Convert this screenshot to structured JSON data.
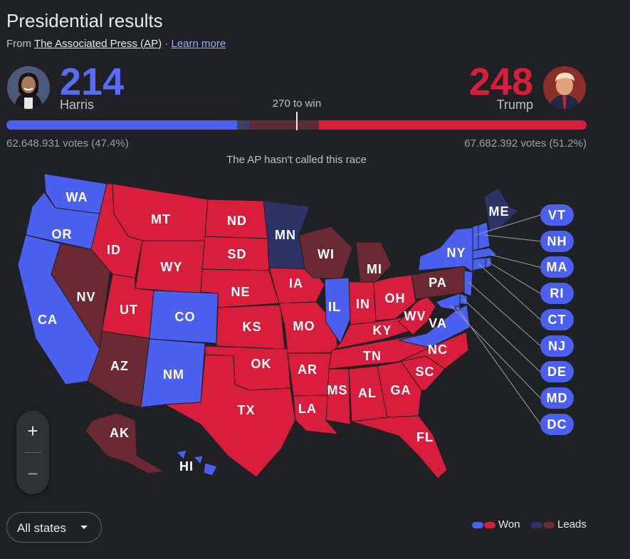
{
  "header": {
    "title": "Presidential results",
    "source_prefix": "From",
    "source_name": "The Associated Press (AP)",
    "separator": "·",
    "learn_more": "Learn more"
  },
  "candidates": {
    "harris": {
      "name": "Harris",
      "electoral_votes": "214",
      "votes_text": "62.648.931 votes (47.4%)",
      "color": "#5a6cf5"
    },
    "trump": {
      "name": "Trump",
      "electoral_votes": "248",
      "votes_text": "67.682.392 votes (51.2%)",
      "color": "#d81e3c"
    }
  },
  "progress": {
    "to_win_label": "270 to win",
    "total_electoral": 538,
    "win_threshold": 270,
    "dem_won": 214,
    "dem_leads": 12,
    "rep_leads": 64,
    "rep_won": 248
  },
  "status_text": "The AP hasn't called this race",
  "colors": {
    "dem_won": "#4c60f0",
    "dem_leads": "#2e3367",
    "rep_won": "#d81e3c",
    "rep_leads": "#6b2a33",
    "bar_dem_leads": "#3a4266",
    "bar_rep_leads": "#5a2d35"
  },
  "states": {
    "WA": {
      "label": "WA",
      "status": "dem_won"
    },
    "OR": {
      "label": "OR",
      "status": "dem_won"
    },
    "CA": {
      "label": "CA",
      "status": "dem_won"
    },
    "NV": {
      "label": "NV",
      "status": "rep_leads"
    },
    "ID": {
      "label": "ID",
      "status": "rep_won"
    },
    "MT": {
      "label": "MT",
      "status": "rep_won"
    },
    "WY": {
      "label": "WY",
      "status": "rep_won"
    },
    "UT": {
      "label": "UT",
      "status": "rep_won"
    },
    "AZ": {
      "label": "AZ",
      "status": "rep_leads"
    },
    "CO": {
      "label": "CO",
      "status": "dem_won"
    },
    "NM": {
      "label": "NM",
      "status": "dem_won"
    },
    "ND": {
      "label": "ND",
      "status": "rep_won"
    },
    "SD": {
      "label": "SD",
      "status": "rep_won"
    },
    "NE": {
      "label": "NE",
      "status": "rep_won"
    },
    "KS": {
      "label": "KS",
      "status": "rep_won"
    },
    "OK": {
      "label": "OK",
      "status": "rep_won"
    },
    "TX": {
      "label": "TX",
      "status": "rep_won"
    },
    "MN": {
      "label": "MN",
      "status": "dem_leads"
    },
    "IA": {
      "label": "IA",
      "status": "rep_won"
    },
    "MO": {
      "label": "MO",
      "status": "rep_won"
    },
    "AR": {
      "label": "AR",
      "status": "rep_won"
    },
    "LA": {
      "label": "LA",
      "status": "rep_won"
    },
    "WI": {
      "label": "WI",
      "status": "rep_leads"
    },
    "IL": {
      "label": "IL",
      "status": "dem_won"
    },
    "MI": {
      "label": "MI",
      "status": "rep_leads"
    },
    "IN": {
      "label": "IN",
      "status": "rep_won"
    },
    "OH": {
      "label": "OH",
      "status": "rep_won"
    },
    "KY": {
      "label": "KY",
      "status": "rep_won"
    },
    "TN": {
      "label": "TN",
      "status": "rep_won"
    },
    "MS": {
      "label": "MS",
      "status": "rep_won"
    },
    "AL": {
      "label": "AL",
      "status": "rep_won"
    },
    "GA": {
      "label": "GA",
      "status": "rep_won"
    },
    "FL": {
      "label": "FL",
      "status": "rep_won"
    },
    "SC": {
      "label": "SC",
      "status": "rep_won"
    },
    "NC": {
      "label": "NC",
      "status": "rep_won"
    },
    "VA": {
      "label": "VA",
      "status": "dem_won"
    },
    "WV": {
      "label": "WV",
      "status": "rep_won"
    },
    "PA": {
      "label": "PA",
      "status": "rep_leads"
    },
    "NY": {
      "label": "NY",
      "status": "dem_won"
    },
    "ME": {
      "label": "ME",
      "status": "dem_leads"
    },
    "AK": {
      "label": "AK",
      "status": "rep_leads"
    },
    "HI": {
      "label": "HI",
      "status": "dem_won"
    }
  },
  "small_states": [
    "VT",
    "NH",
    "MA",
    "RI",
    "CT",
    "NJ",
    "DE",
    "MD",
    "DC"
  ],
  "zoom": {
    "in": "+",
    "out": "−"
  },
  "filter": {
    "selected": "All states"
  },
  "legend": {
    "won": "Won",
    "leads": "Leads"
  }
}
